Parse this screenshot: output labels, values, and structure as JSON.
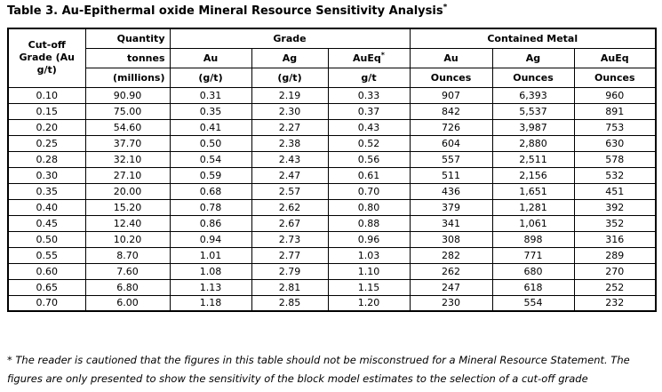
{
  "title": {
    "text": "Table 3. Au-Epithermal oxide Mineral Resource Sensitivity Analysis",
    "superscript": "*"
  },
  "table": {
    "header": {
      "cutoff": {
        "line1": "Cut-off",
        "line2": "Grade (Au",
        "line3": "g/t)"
      },
      "quantity": {
        "group": "Quantity",
        "name": "tonnes",
        "unit": "(millions)"
      },
      "grade": {
        "group": "Grade",
        "columns": [
          {
            "name": "Au",
            "unit": "(g/t)"
          },
          {
            "name": "Ag",
            "unit": "(g/t)"
          },
          {
            "name": "AuEq",
            "sup": "*",
            "unit": "g/t"
          }
        ]
      },
      "contained_metal": {
        "group": "Contained Metal",
        "columns": [
          {
            "name": "Au",
            "unit": "Ounces"
          },
          {
            "name": "Ag",
            "unit": "Ounces"
          },
          {
            "name": "AuEq",
            "unit": "Ounces"
          }
        ]
      }
    },
    "rows": [
      [
        "0.10",
        "90.90",
        "0.31",
        "2.19",
        "0.33",
        "907",
        "6,393",
        "960"
      ],
      [
        "0.15",
        "75.00",
        "0.35",
        "2.30",
        "0.37",
        "842",
        "5,537",
        "891"
      ],
      [
        "0.20",
        "54.60",
        "0.41",
        "2.27",
        "0.43",
        "726",
        "3,987",
        "753"
      ],
      [
        "0.25",
        "37.70",
        "0.50",
        "2.38",
        "0.52",
        "604",
        "2,880",
        "630"
      ],
      [
        "0.28",
        "32.10",
        "0.54",
        "2.43",
        "0.56",
        "557",
        "2,511",
        "578"
      ],
      [
        "0.30",
        "27.10",
        "0.59",
        "2.47",
        "0.61",
        "511",
        "2,156",
        "532"
      ],
      [
        "0.35",
        "20.00",
        "0.68",
        "2.57",
        "0.70",
        "436",
        "1,651",
        "451"
      ],
      [
        "0.40",
        "15.20",
        "0.78",
        "2.62",
        "0.80",
        "379",
        "1,281",
        "392"
      ],
      [
        "0.45",
        "12.40",
        "0.86",
        "2.67",
        "0.88",
        "341",
        "1,061",
        "352"
      ],
      [
        "0.50",
        "10.20",
        "0.94",
        "2.73",
        "0.96",
        "308",
        "898",
        "316"
      ],
      [
        "0.55",
        "8.70",
        "1.01",
        "2.77",
        "1.03",
        "282",
        "771",
        "289"
      ],
      [
        "0.60",
        "7.60",
        "1.08",
        "2.79",
        "1.10",
        "262",
        "680",
        "270"
      ],
      [
        "0.65",
        "6.80",
        "1.13",
        "2.81",
        "1.15",
        "247",
        "618",
        "252"
      ],
      [
        "0.70",
        "6.00",
        "1.18",
        "2.85",
        "1.20",
        "230",
        "554",
        "232"
      ]
    ]
  },
  "footnote": "* The reader is cautioned that the figures in this table should not be misconstrued for a Mineral Resource Statement. The figures are only presented to show the sensitivity of the block model estimates to the selection of a cut-off grade",
  "colors": {
    "text": "#000000",
    "border": "#000000",
    "background": "#ffffff"
  }
}
